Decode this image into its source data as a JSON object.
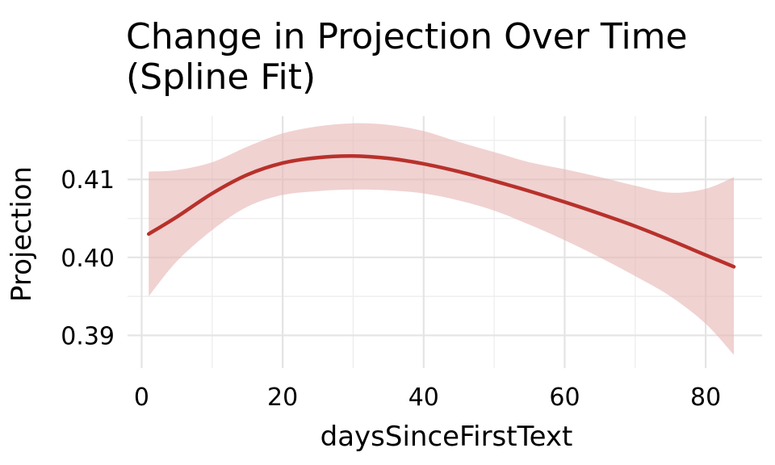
{
  "chart_data": {
    "type": "line",
    "title": "Change in Projection Over Time\n(Spline Fit)",
    "title_lines": [
      "Change in Projection Over Time",
      "(Spline Fit)"
    ],
    "xlabel": "daysSinceFirstText",
    "ylabel": "Projection",
    "xlim": [
      -2,
      88
    ],
    "ylim": [
      0.3858,
      0.4181
    ],
    "x_ticks": [
      0,
      20,
      40,
      60,
      80
    ],
    "x_tick_labels": [
      "0",
      "20",
      "40",
      "60",
      "80"
    ],
    "y_ticks": [
      0.39,
      0.4,
      0.41
    ],
    "y_tick_labels": [
      "0.39",
      "0.40",
      "0.41"
    ],
    "grid": true,
    "colors": {
      "line": "#b8312b",
      "ribbon": "#e7b6b5"
    },
    "series": [
      {
        "x": [
          1,
          5,
          10,
          15,
          20,
          25,
          30,
          35,
          40,
          45,
          50,
          55,
          60,
          65,
          70,
          75,
          80,
          84
        ],
        "fit": [
          0.403,
          0.4052,
          0.4082,
          0.4106,
          0.4121,
          0.4128,
          0.413,
          0.4127,
          0.412,
          0.411,
          0.4098,
          0.4085,
          0.4071,
          0.4056,
          0.404,
          0.4022,
          0.4003,
          0.3988
        ],
        "lower": [
          0.395,
          0.3995,
          0.4035,
          0.4065,
          0.408,
          0.4085,
          0.4087,
          0.4086,
          0.4082,
          0.4073,
          0.406,
          0.4042,
          0.4022,
          0.4,
          0.3976,
          0.395,
          0.3915,
          0.3875
        ],
        "upper": [
          0.411,
          0.4112,
          0.4122,
          0.4142,
          0.4159,
          0.4168,
          0.4172,
          0.417,
          0.4162,
          0.4148,
          0.4135,
          0.4122,
          0.4113,
          0.4103,
          0.4092,
          0.4083,
          0.4088,
          0.4103
        ]
      }
    ]
  }
}
